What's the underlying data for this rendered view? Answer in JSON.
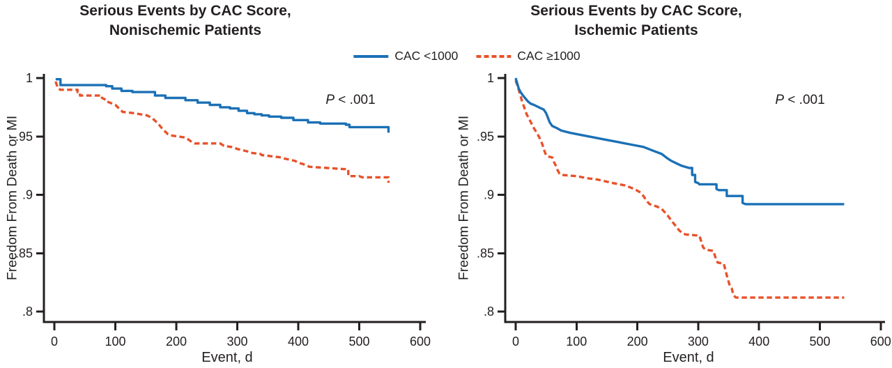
{
  "figure": {
    "panels": [
      {
        "title_line1": "Serious Events by CAC Score,",
        "title_line2": "Nonischemic Patients",
        "p_italic": "P",
        "p_rest": " < .001",
        "x_title": "Event, d",
        "y_title": "Freedom From Death or MI"
      },
      {
        "title_line1": "Serious Events by CAC Score,",
        "title_line2": "Ischemic Patients",
        "p_italic": "P",
        "p_rest": " < .001",
        "x_title": "Event, d",
        "y_title": "Freedom From Death or MI"
      }
    ],
    "legend": {
      "items": [
        {
          "label": "CAC <1000",
          "color": "#1b70b6",
          "style": "solid"
        },
        {
          "label": "CAC ≥1000",
          "color": "#e8512a",
          "style": "dashed"
        }
      ]
    },
    "axis_color": "#231f20"
  },
  "chart_data": [
    {
      "type": "line",
      "subtype": "kaplan-meier-step",
      "title": "Serious Events by CAC Score, Nonischemic Patients",
      "xlabel": "Event, d",
      "ylabel": "Freedom From Death or MI",
      "annotation": "P < .001",
      "legend_position": "top-center",
      "grid": false,
      "xlim": [
        0,
        600
      ],
      "ylim": [
        0.8,
        1.0
      ],
      "xticks": [
        0,
        100,
        200,
        300,
        400,
        500,
        600
      ],
      "xtick_labels": [
        "0",
        "100",
        "200",
        "300",
        "400",
        "500",
        "600"
      ],
      "yticks": [
        1,
        0.95,
        0.9,
        0.85,
        0.8
      ],
      "ytick_labels": [
        "1",
        ".95",
        ".9",
        ".85",
        ".8"
      ],
      "series": [
        {
          "name": "CAC ≥1000",
          "color": "#e8512a",
          "line": "dashed",
          "end_tick": true,
          "points": [
            [
              2,
              0.997
            ],
            [
              6,
              0.991
            ],
            [
              10,
              0.99
            ],
            [
              38,
              0.99
            ],
            [
              38,
              0.988
            ],
            [
              42,
              0.988
            ],
            [
              42,
              0.985
            ],
            [
              78,
              0.985
            ],
            [
              78,
              0.983
            ],
            [
              86,
              0.981
            ],
            [
              86,
              0.98
            ],
            [
              100,
              0.977
            ],
            [
              108,
              0.973
            ],
            [
              112,
              0.971
            ],
            [
              130,
              0.97
            ],
            [
              152,
              0.968
            ],
            [
              160,
              0.966
            ],
            [
              170,
              0.961
            ],
            [
              178,
              0.956
            ],
            [
              186,
              0.952
            ],
            [
              190,
              0.951
            ],
            [
              215,
              0.949
            ],
            [
              218,
              0.948
            ],
            [
              226,
              0.945
            ],
            [
              230,
              0.944
            ],
            [
              272,
              0.944
            ],
            [
              278,
              0.942
            ],
            [
              290,
              0.941
            ],
            [
              302,
              0.939
            ],
            [
              318,
              0.937
            ],
            [
              322,
              0.936
            ],
            [
              338,
              0.935
            ],
            [
              340,
              0.934
            ],
            [
              372,
              0.932
            ],
            [
              378,
              0.931
            ],
            [
              395,
              0.929
            ],
            [
              398,
              0.928
            ],
            [
              415,
              0.925
            ],
            [
              418,
              0.924
            ],
            [
              448,
              0.923
            ],
            [
              474,
              0.922
            ],
            [
              482,
              0.922
            ],
            [
              482,
              0.916
            ],
            [
              500,
              0.916
            ],
            [
              505,
              0.915
            ],
            [
              548,
              0.915
            ]
          ]
        },
        {
          "name": "CAC <1000",
          "color": "#1b70b6",
          "line": "solid",
          "end_tick": true,
          "points": [
            [
              2,
              0.999
            ],
            [
              10,
              0.999
            ],
            [
              10,
              0.994
            ],
            [
              85,
              0.994
            ],
            [
              85,
              0.993
            ],
            [
              95,
              0.993
            ],
            [
              95,
              0.991
            ],
            [
              110,
              0.991
            ],
            [
              110,
              0.989
            ],
            [
              128,
              0.989
            ],
            [
              128,
              0.988
            ],
            [
              165,
              0.988
            ],
            [
              165,
              0.985
            ],
            [
              182,
              0.985
            ],
            [
              182,
              0.983
            ],
            [
              215,
              0.983
            ],
            [
              215,
              0.981
            ],
            [
              235,
              0.981
            ],
            [
              235,
              0.979
            ],
            [
              255,
              0.979
            ],
            [
              255,
              0.977
            ],
            [
              272,
              0.977
            ],
            [
              272,
              0.975
            ],
            [
              288,
              0.975
            ],
            [
              288,
              0.974
            ],
            [
              302,
              0.974
            ],
            [
              302,
              0.972
            ],
            [
              316,
              0.972
            ],
            [
              316,
              0.97
            ],
            [
              328,
              0.97
            ],
            [
              328,
              0.969
            ],
            [
              340,
              0.969
            ],
            [
              340,
              0.968
            ],
            [
              352,
              0.968
            ],
            [
              352,
              0.967
            ],
            [
              372,
              0.967
            ],
            [
              372,
              0.966
            ],
            [
              392,
              0.966
            ],
            [
              392,
              0.964
            ],
            [
              416,
              0.964
            ],
            [
              416,
              0.962
            ],
            [
              436,
              0.962
            ],
            [
              436,
              0.961
            ],
            [
              478,
              0.961
            ],
            [
              478,
              0.96
            ],
            [
              484,
              0.96
            ],
            [
              484,
              0.958
            ],
            [
              548,
              0.958
            ]
          ]
        }
      ]
    },
    {
      "type": "line",
      "subtype": "kaplan-meier-step",
      "title": "Serious Events by CAC Score, Ischemic Patients",
      "xlabel": "Event, d",
      "ylabel": "Freedom From Death or MI",
      "annotation": "P < .001",
      "legend_position": "top-center",
      "grid": false,
      "xlim": [
        0,
        600
      ],
      "ylim": [
        0.8,
        1.0
      ],
      "xticks": [
        0,
        100,
        200,
        300,
        400,
        500,
        600
      ],
      "xtick_labels": [
        "0",
        "100",
        "200",
        "300",
        "400",
        "500",
        "600"
      ],
      "yticks": [
        1,
        0.95,
        0.9,
        0.85,
        0.8
      ],
      "ytick_labels": [
        "1",
        ".95",
        ".9",
        ".85",
        ".8"
      ],
      "series": [
        {
          "name": "CAC ≥1000",
          "color": "#e8512a",
          "line": "dashed",
          "end_tick": false,
          "points": [
            [
              0,
              0.998
            ],
            [
              5,
              0.99
            ],
            [
              10,
              0.981
            ],
            [
              14,
              0.975
            ],
            [
              18,
              0.969
            ],
            [
              24,
              0.963
            ],
            [
              30,
              0.957
            ],
            [
              36,
              0.952
            ],
            [
              40,
              0.948
            ],
            [
              44,
              0.943
            ],
            [
              47,
              0.938
            ],
            [
              50,
              0.934
            ],
            [
              52,
              0.933
            ],
            [
              60,
              0.932
            ],
            [
              63,
              0.928
            ],
            [
              66,
              0.925
            ],
            [
              69,
              0.921
            ],
            [
              72,
              0.918
            ],
            [
              76,
              0.917
            ],
            [
              100,
              0.916
            ],
            [
              120,
              0.914
            ],
            [
              135,
              0.913
            ],
            [
              160,
              0.91
            ],
            [
              180,
              0.908
            ],
            [
              195,
              0.905
            ],
            [
              205,
              0.902
            ],
            [
              210,
              0.899
            ],
            [
              215,
              0.895
            ],
            [
              220,
              0.892
            ],
            [
              232,
              0.89
            ],
            [
              240,
              0.888
            ],
            [
              245,
              0.885
            ],
            [
              250,
              0.882
            ],
            [
              256,
              0.878
            ],
            [
              262,
              0.874
            ],
            [
              268,
              0.87
            ],
            [
              274,
              0.867
            ],
            [
              280,
              0.866
            ],
            [
              302,
              0.865
            ],
            [
              305,
              0.86
            ],
            [
              308,
              0.855
            ],
            [
              312,
              0.853
            ],
            [
              325,
              0.852
            ],
            [
              328,
              0.847
            ],
            [
              332,
              0.842
            ],
            [
              342,
              0.841
            ],
            [
              345,
              0.835
            ],
            [
              348,
              0.829
            ],
            [
              352,
              0.822
            ],
            [
              355,
              0.82
            ],
            [
              358,
              0.814
            ],
            [
              362,
              0.812
            ],
            [
              540,
              0.812
            ]
          ]
        },
        {
          "name": "CAC <1000",
          "color": "#1b70b6",
          "line": "solid",
          "end_tick": false,
          "points": [
            [
              0,
              1.0
            ],
            [
              5,
              0.991
            ],
            [
              8,
              0.988
            ],
            [
              12,
              0.985
            ],
            [
              20,
              0.98
            ],
            [
              25,
              0.978
            ],
            [
              30,
              0.977
            ],
            [
              42,
              0.974
            ],
            [
              46,
              0.973
            ],
            [
              50,
              0.97
            ],
            [
              53,
              0.966
            ],
            [
              56,
              0.962
            ],
            [
              60,
              0.959
            ],
            [
              68,
              0.957
            ],
            [
              75,
              0.955
            ],
            [
              90,
              0.953
            ],
            [
              110,
              0.951
            ],
            [
              130,
              0.949
            ],
            [
              150,
              0.947
            ],
            [
              170,
              0.945
            ],
            [
              190,
              0.943
            ],
            [
              210,
              0.941
            ],
            [
              225,
              0.938
            ],
            [
              240,
              0.935
            ],
            [
              250,
              0.931
            ],
            [
              256,
              0.929
            ],
            [
              264,
              0.927
            ],
            [
              272,
              0.925
            ],
            [
              285,
              0.923
            ],
            [
              290,
              0.923
            ],
            [
              290,
              0.917
            ],
            [
              295,
              0.917
            ],
            [
              295,
              0.911
            ],
            [
              300,
              0.91
            ],
            [
              302,
              0.909
            ],
            [
              330,
              0.909
            ],
            [
              330,
              0.905
            ],
            [
              334,
              0.904
            ],
            [
              347,
              0.904
            ],
            [
              347,
              0.899
            ],
            [
              352,
              0.899
            ],
            [
              373,
              0.899
            ],
            [
              373,
              0.893
            ],
            [
              378,
              0.892
            ],
            [
              540,
              0.892
            ]
          ]
        }
      ]
    }
  ]
}
